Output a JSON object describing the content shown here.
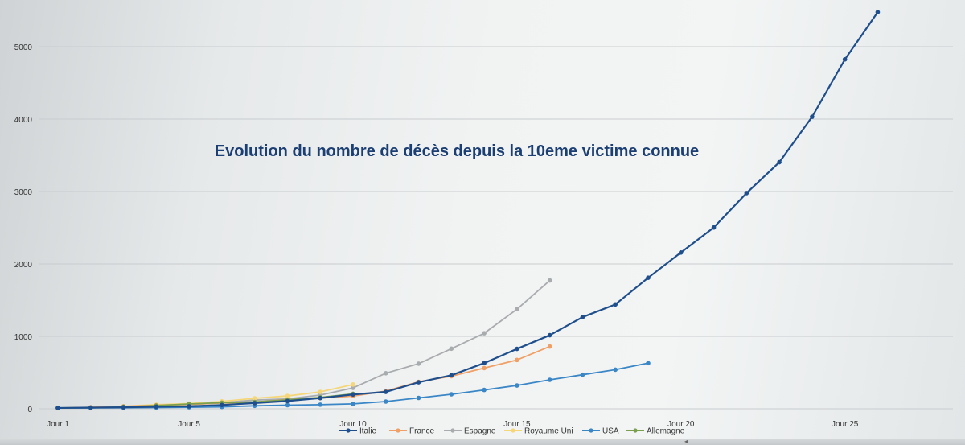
{
  "chart_data": {
    "type": "line",
    "title": "Evolution du nombre de décès depuis la 10eme victime connue",
    "xlabel": "",
    "ylabel": "",
    "ylim": [
      0,
      5400
    ],
    "xlim": [
      1,
      28
    ],
    "yticks": [
      0,
      1000,
      2000,
      3000,
      4000,
      5000
    ],
    "xtick_values": [
      1,
      5,
      10,
      15,
      20,
      25
    ],
    "xtick_labels": [
      "Jour 1",
      "Jour 5",
      "Jour 10",
      "Jour 15",
      "Jour 20",
      "Jour 25"
    ],
    "grid": true,
    "legend_position": "bottom",
    "series": [
      {
        "name": "Italie",
        "color": "#1f4e8c",
        "values": [
          12,
          17,
          21,
          29,
          34,
          52,
          79,
          107,
          148,
          197,
          233,
          366,
          463,
          631,
          827,
          1016,
          1266,
          1441,
          1809,
          2158,
          2503,
          2978,
          3405,
          4032,
          4825,
          5476
        ]
      },
      {
        "name": "France",
        "color": "#f0a066",
        "values": [
          11,
          19,
          33,
          48,
          61,
          79,
          91,
          127,
          148,
          175,
          244,
          372,
          450,
          562,
          674,
          860
        ]
      },
      {
        "name": "Espagne",
        "color": "#a9acae",
        "values": [
          10,
          17,
          28,
          35,
          55,
          84,
          120,
          136,
          189,
          288,
          491,
          623,
          830,
          1043,
          1375,
          1772
        ]
      },
      {
        "name": "Royaume Uni",
        "color": "#f5d77a",
        "values": [
          10,
          21,
          35,
          56,
          72,
          103,
          144,
          177,
          233,
          335
        ]
      },
      {
        "name": "USA",
        "color": "#3a86c6",
        "values": [
          11,
          12,
          14,
          17,
          21,
          26,
          41,
          50,
          57,
          68,
          100,
          150,
          200,
          260,
          322,
          400,
          470,
          540,
          630
        ]
      },
      {
        "name": "Allemagne",
        "color": "#7aa04f",
        "values": [
          12,
          13,
          28,
          44,
          67,
          84,
          94,
          123,
          157,
          206
        ]
      }
    ]
  }
}
